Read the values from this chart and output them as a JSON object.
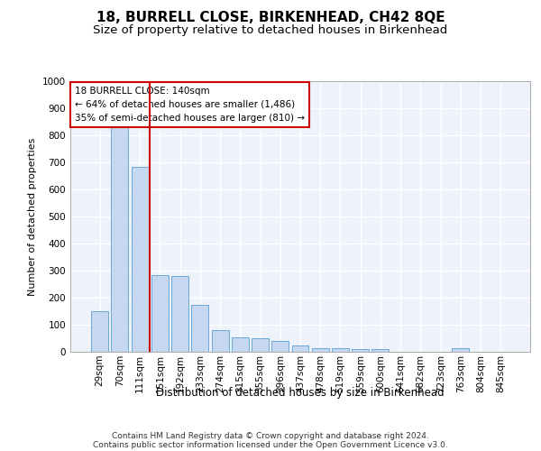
{
  "title": "18, BURRELL CLOSE, BIRKENHEAD, CH42 8QE",
  "subtitle": "Size of property relative to detached houses in Birkenhead",
  "xlabel": "Distribution of detached houses by size in Birkenhead",
  "ylabel": "Number of detached properties",
  "bar_color": "#c5d8f0",
  "bar_edge_color": "#5a9fd4",
  "categories": [
    "29sqm",
    "70sqm",
    "111sqm",
    "151sqm",
    "192sqm",
    "233sqm",
    "274sqm",
    "315sqm",
    "355sqm",
    "396sqm",
    "437sqm",
    "478sqm",
    "519sqm",
    "559sqm",
    "600sqm",
    "641sqm",
    "682sqm",
    "723sqm",
    "763sqm",
    "804sqm",
    "845sqm"
  ],
  "values": [
    150,
    830,
    685,
    285,
    280,
    175,
    80,
    55,
    50,
    40,
    22,
    14,
    12,
    11,
    11,
    0,
    0,
    0,
    12,
    0,
    0
  ],
  "ylim": [
    0,
    1000
  ],
  "yticks": [
    0,
    100,
    200,
    300,
    400,
    500,
    600,
    700,
    800,
    900,
    1000
  ],
  "vline_x": 2.5,
  "vline_color": "#cc0000",
  "annotation_text": "18 BURRELL CLOSE: 140sqm\n← 64% of detached houses are smaller (1,486)\n35% of semi-detached houses are larger (810) →",
  "annotation_box_color": "#ffffff",
  "annotation_box_edge_color": "#cc0000",
  "footer_line1": "Contains HM Land Registry data © Crown copyright and database right 2024.",
  "footer_line2": "Contains public sector information licensed under the Open Government Licence v3.0.",
  "background_color": "#eef2fb",
  "grid_color": "#ffffff",
  "title_fontsize": 11,
  "subtitle_fontsize": 9.5,
  "xlabel_fontsize": 8.5,
  "ylabel_fontsize": 8,
  "tick_fontsize": 7.5,
  "footer_fontsize": 6.5,
  "annot_fontsize": 7.5
}
